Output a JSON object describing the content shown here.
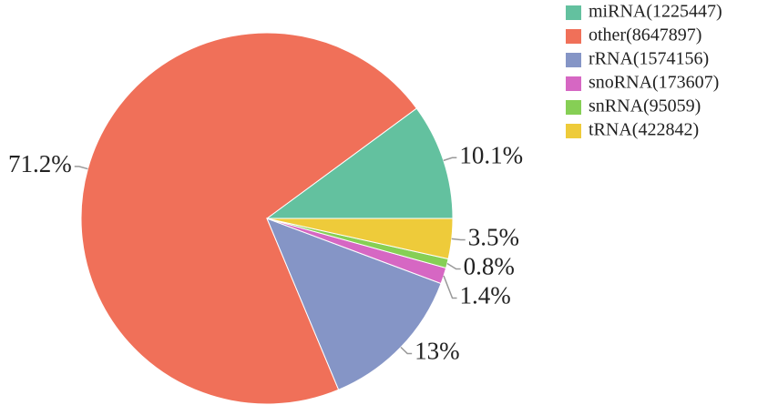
{
  "chart_data": {
    "type": "pie",
    "categories": [
      "miRNA(1225447)",
      "other(8647897)",
      "rRNA(1574156)",
      "snoRNA(173607)",
      "snRNA(95059)",
      "tRNA(422842)"
    ],
    "values": [
      10.1,
      71.2,
      13,
      1.4,
      0.8,
      3.5
    ],
    "value_labels": [
      "10.1%",
      "71.2%",
      "13%",
      "1.4%",
      "0.8%",
      "3.5%"
    ],
    "colors": [
      "#63c19f",
      "#f07059",
      "#8595c6",
      "#d667c3",
      "#86cf55",
      "#eecb3a"
    ],
    "legend": "top-right"
  }
}
